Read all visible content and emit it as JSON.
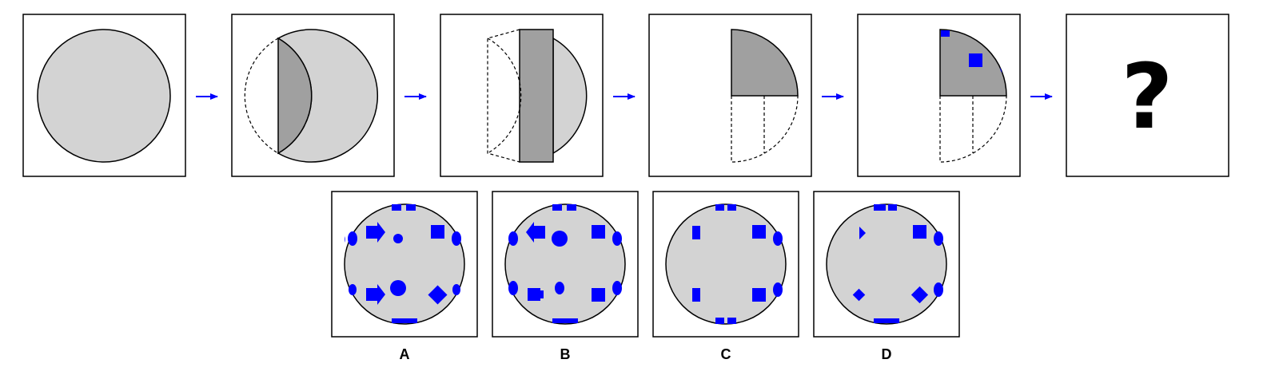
{
  "colors": {
    "light_gray": "#d3d3d3",
    "dark_gray": "#a0a0a0",
    "blue": "#0000ff",
    "outline": "#000000",
    "background": "#ffffff"
  },
  "sequence": {
    "steps": [
      "full-circle",
      "fold-left-over",
      "fold-left-again",
      "fold-bottom-up",
      "punch-holes",
      "unknown"
    ],
    "arrow_icon": "arrow-right-icon",
    "unknown_label": "?"
  },
  "options": [
    {
      "label": "A"
    },
    {
      "label": "B"
    },
    {
      "label": "C"
    },
    {
      "label": "D"
    }
  ]
}
